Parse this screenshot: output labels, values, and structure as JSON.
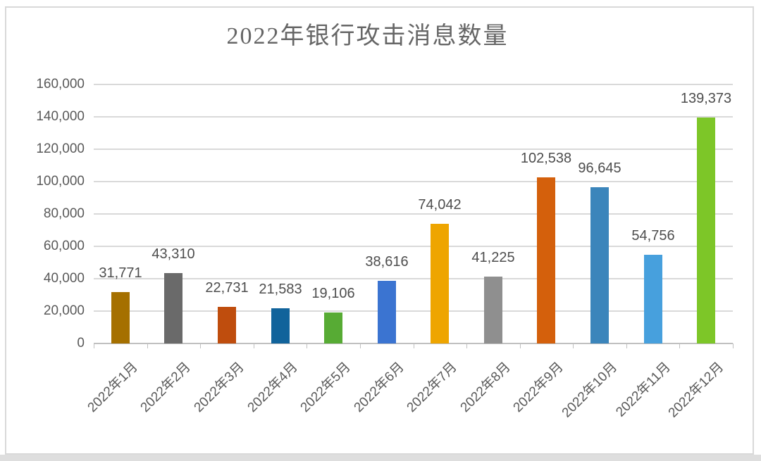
{
  "page": {
    "background": "#FFFFFF",
    "frame_border_color": "#D9D9D9",
    "bottom_strip_color": "#DEDEDE"
  },
  "chart_data": {
    "type": "bar",
    "title": "2022年银行攻击消息数量",
    "categories": [
      "2022年1月",
      "2022年2月",
      "2022年3月",
      "2022年4月",
      "2022年5月",
      "2022年6月",
      "2022年7月",
      "2022年8月",
      "2022年9月",
      "2022年10月",
      "2022年11月",
      "2022年12月"
    ],
    "values": [
      31771,
      43310,
      22731,
      21583,
      19106,
      38616,
      74042,
      41225,
      102538,
      96645,
      54756,
      139373
    ],
    "value_labels": [
      "31,771",
      "43,310",
      "22,731",
      "21,583",
      "19,106",
      "38,616",
      "74,042",
      "41,225",
      "102,538",
      "96,645",
      "54,756",
      "139,373"
    ],
    "bar_colors": [
      "#A57000",
      "#6A6A6A",
      "#BF4D0D",
      "#11639B",
      "#57AB34",
      "#3B74D1",
      "#EEA500",
      "#8F8F8F",
      "#D4600C",
      "#3B85BB",
      "#47A0DD",
      "#7DC628"
    ],
    "xlabel": "",
    "ylabel": "",
    "ylim": [
      0,
      160000
    ],
    "ytick_interval": 20000,
    "ytick_labels": [
      "0",
      "20,000",
      "40,000",
      "60,000",
      "80,000",
      "100,000",
      "120,000",
      "140,000",
      "160,000"
    ],
    "grid": true,
    "legend": "none",
    "x_label_rotation_deg": -45,
    "colors": {
      "gridline": "#D9D9D9",
      "axis_line": "#C0C0C0",
      "axis_text": "#595959",
      "data_label_text": "#4D4D4D",
      "title_text": "#666666"
    }
  }
}
